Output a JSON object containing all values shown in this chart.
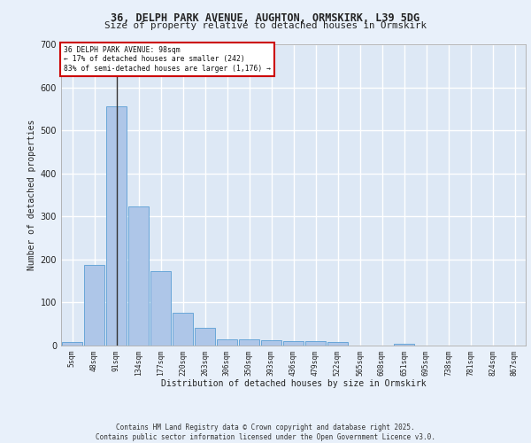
{
  "title_line1": "36, DELPH PARK AVENUE, AUGHTON, ORMSKIRK, L39 5DG",
  "title_line2": "Size of property relative to detached houses in Ormskirk",
  "xlabel": "Distribution of detached houses by size in Ormskirk",
  "ylabel": "Number of detached properties",
  "bin_labels": [
    "5sqm",
    "48sqm",
    "91sqm",
    "134sqm",
    "177sqm",
    "220sqm",
    "263sqm",
    "306sqm",
    "350sqm",
    "393sqm",
    "436sqm",
    "479sqm",
    "522sqm",
    "565sqm",
    "608sqm",
    "651sqm",
    "695sqm",
    "738sqm",
    "781sqm",
    "824sqm",
    "867sqm"
  ],
  "bar_values": [
    8,
    187,
    555,
    323,
    172,
    77,
    42,
    15,
    15,
    12,
    11,
    10,
    8,
    0,
    0,
    5,
    0,
    0,
    0,
    0,
    0
  ],
  "bar_color": "#aec6e8",
  "bar_edge_color": "#5a9fd4",
  "vline_x_index": 2,
  "vline_color": "#333333",
  "annotation_text": "36 DELPH PARK AVENUE: 98sqm\n← 17% of detached houses are smaller (242)\n83% of semi-detached houses are larger (1,176) →",
  "annotation_box_color": "#ffffff",
  "annotation_edge_color": "#cc0000",
  "background_color": "#dde8f5",
  "fig_background_color": "#e8f0fa",
  "grid_color": "#ffffff",
  "ylim": [
    0,
    700
  ],
  "yticks": [
    0,
    100,
    200,
    300,
    400,
    500,
    600,
    700
  ],
  "footer_text": "Contains HM Land Registry data © Crown copyright and database right 2025.\nContains public sector information licensed under the Open Government Licence v3.0."
}
